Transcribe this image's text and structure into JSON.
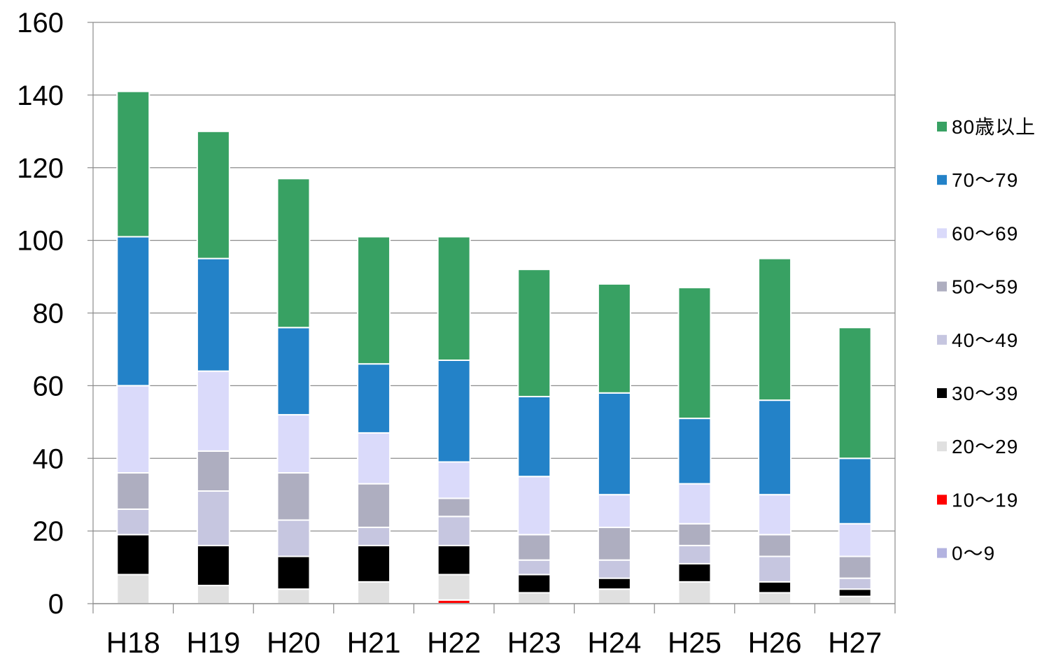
{
  "chart_data": {
    "type": "bar",
    "stacked": true,
    "categories": [
      "H18",
      "H19",
      "H20",
      "H21",
      "H22",
      "H23",
      "H24",
      "H25",
      "H26",
      "H27"
    ],
    "ylim": [
      0,
      160
    ],
    "yticks": [
      0,
      20,
      40,
      60,
      80,
      100,
      120,
      140,
      160
    ],
    "grid": true,
    "legend_position": "right",
    "series": [
      {
        "name": "0〜9",
        "color": "#b3b3e0",
        "values": [
          0,
          0,
          0,
          0,
          0,
          0,
          0,
          0,
          0,
          0
        ]
      },
      {
        "name": "10〜19",
        "color": "#ff0000",
        "values": [
          0,
          0,
          0,
          0,
          1,
          0,
          0,
          0,
          0,
          0
        ]
      },
      {
        "name": "20〜29",
        "color": "#e0e0e0",
        "values": [
          8,
          5,
          4,
          6,
          7,
          3,
          4,
          6,
          3,
          2
        ]
      },
      {
        "name": "30〜39",
        "color": "#000000",
        "values": [
          11,
          11,
          9,
          10,
          8,
          5,
          3,
          5,
          3,
          2
        ]
      },
      {
        "name": "40〜49",
        "color": "#c6c6e0",
        "values": [
          7,
          15,
          10,
          5,
          8,
          4,
          5,
          5,
          7,
          3
        ]
      },
      {
        "name": "50〜59",
        "color": "#aeaec0",
        "values": [
          10,
          11,
          13,
          12,
          5,
          7,
          9,
          6,
          6,
          6
        ]
      },
      {
        "name": "60〜69",
        "color": "#dadafa",
        "values": [
          24,
          22,
          16,
          14,
          10,
          16,
          9,
          11,
          11,
          9
        ]
      },
      {
        "name": "70〜79",
        "color": "#2382c8",
        "values": [
          41,
          31,
          24,
          19,
          28,
          22,
          28,
          18,
          26,
          18
        ]
      },
      {
        "name": "80歳以上",
        "color": "#38a163",
        "values": [
          40,
          35,
          41,
          35,
          34,
          35,
          30,
          36,
          39,
          36
        ]
      }
    ]
  }
}
